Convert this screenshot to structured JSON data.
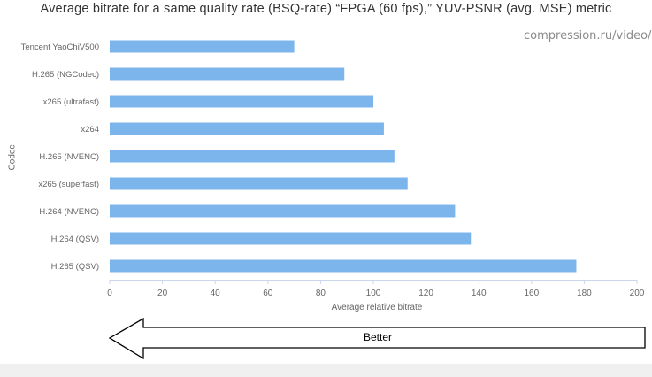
{
  "chart_data": {
    "type": "bar",
    "orientation": "horizontal",
    "title": "Average bitrate for a same quality rate (BSQ-rate) “FPGA (60 fps),” YUV-PSNR (avg. MSE) metric",
    "xlabel": "Average relative bitrate",
    "ylabel": "Codec",
    "watermark": "compression.ru/video/",
    "categories": [
      "Tencent YaoChiV500",
      "H.265 (NGCodec)",
      "x265 (ultrafast)",
      "x264",
      "H.265 (NVENC)",
      "x265 (superfast)",
      "H.264 (NVENC)",
      "H.264 (QSV)",
      "H.265 (QSV)"
    ],
    "values": [
      70,
      89,
      100,
      104,
      108,
      113,
      131,
      137,
      177
    ],
    "xlim": [
      0,
      200
    ],
    "xticks": [
      0,
      20,
      40,
      60,
      80,
      100,
      120,
      140,
      160,
      180,
      200
    ],
    "bar_color": "#7cb5ec",
    "grid": false,
    "legend": "none"
  },
  "arrow": {
    "label": "Better",
    "direction": "left"
  }
}
